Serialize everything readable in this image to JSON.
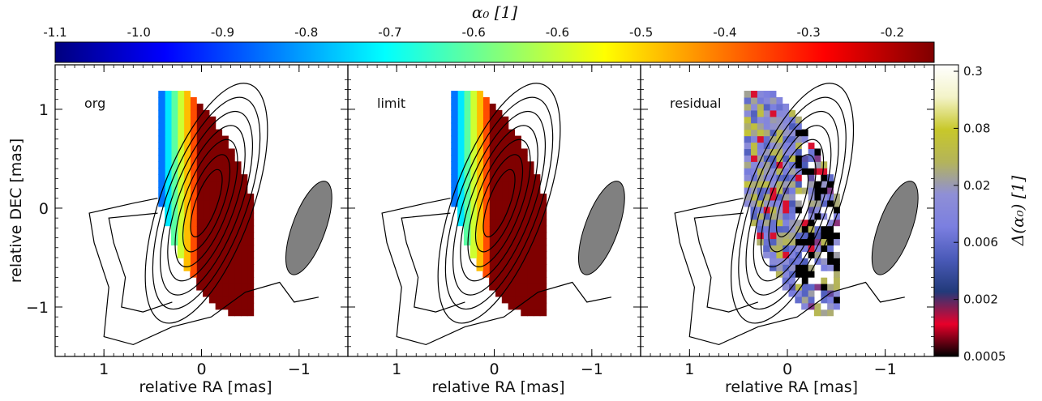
{
  "chart_data": {
    "type": "heatmap",
    "top_colorbar": {
      "label": "α₀  [1]",
      "tick_labels": [
        "-1.1",
        "-1.0",
        "-0.9",
        "-0.8",
        "-0.7",
        "-0.6",
        "-0.6",
        "-0.5",
        "-0.4",
        "-0.3",
        "-0.2"
      ],
      "colors": [
        "#00007f",
        "#0000ff",
        "#007fff",
        "#00ffff",
        "#7fff7f",
        "#ffff00",
        "#ff7f00",
        "#ff0000",
        "#7f0000"
      ]
    },
    "right_colorbar": {
      "label": "Δ(α₀)  [1]",
      "tick_labels": [
        "0.3",
        "0.08",
        "0.02",
        "0.006",
        "0.002",
        "0.0005"
      ],
      "colors": [
        "#000000",
        "#e8002a",
        "#223a7a",
        "#4a5ab8",
        "#7b7fe0",
        "#8f8fd6",
        "#b4b45a",
        "#c8c82a",
        "#f3f3c8",
        "#ffffff"
      ]
    },
    "panels": [
      {
        "label": "org",
        "mode": "alpha"
      },
      {
        "label": "limit",
        "mode": "alpha"
      },
      {
        "label": "residual",
        "mode": "residual"
      }
    ],
    "xlabel": "relative RA [mas]",
    "ylabel": "relative DEC [mas]",
    "x_ticks": [
      "1",
      "0",
      "−1"
    ],
    "y_ticks": [
      "1",
      "0",
      "−1"
    ],
    "xlim": [
      1.5,
      -1.5
    ],
    "ylim": [
      -1.5,
      1.45
    ],
    "jet_core": {
      "x": -0.05,
      "y": 0.05
    },
    "beam": {
      "x": -1.1,
      "y": -0.2,
      "semi_major": 0.5,
      "semi_minor": 0.17,
      "pa_deg": 20,
      "color": "#808080"
    }
  }
}
